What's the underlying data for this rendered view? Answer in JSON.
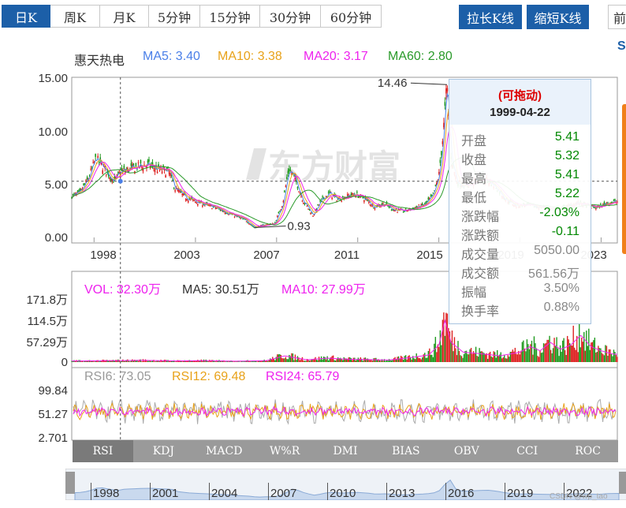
{
  "period_tabs": [
    {
      "label": "日K",
      "active": true
    },
    {
      "label": "周K",
      "active": false
    },
    {
      "label": "月K",
      "active": false
    },
    {
      "label": "5分钟",
      "active": false
    },
    {
      "label": "15分钟",
      "active": false
    },
    {
      "label": "30分钟",
      "active": false
    },
    {
      "label": "60分钟",
      "active": false
    }
  ],
  "buttons": {
    "stretch": "拉长K线",
    "shrink": "缩短K线",
    "edge": "前"
  },
  "stock_name": "惠天热电",
  "ma_legend": [
    {
      "text": "MA5: 3.40",
      "color": "#4a7fe8"
    },
    {
      "text": "MA10: 3.38",
      "color": "#e8a21a"
    },
    {
      "text": "MA20: 3.17",
      "color": "#ee22ee"
    },
    {
      "text": "MA60: 2.80",
      "color": "#2a9a2a"
    }
  ],
  "vol_legend": [
    {
      "text": "VOL: 32.30万",
      "color": "#ee22ee"
    },
    {
      "text": "MA5: 30.51万",
      "color": "#333333"
    },
    {
      "text": "MA10: 27.99万",
      "color": "#ee22ee"
    }
  ],
  "rsi_legend": [
    {
      "text": "RSI6: 73.05",
      "color": "#999999"
    },
    {
      "text": "RSI12: 69.48",
      "color": "#e8a21a"
    },
    {
      "text": "RSI24: 65.79",
      "color": "#ee22ee"
    }
  ],
  "tooltip": {
    "drag_label": "(可拖动)",
    "date": "1999-04-22",
    "rows": [
      {
        "key": "开盘",
        "value": "5.41",
        "color": "#008800"
      },
      {
        "key": "收盘",
        "value": "5.32",
        "color": "#008800"
      },
      {
        "key": "最高",
        "value": "5.41",
        "color": "#008800"
      },
      {
        "key": "最低",
        "value": "5.22",
        "color": "#008800"
      },
      {
        "key": "涨跌幅",
        "value": "-2.03%",
        "color": "#008800"
      },
      {
        "key": "涨跌额",
        "value": "-0.11",
        "color": "#008800"
      },
      {
        "key": "成交量",
        "value": "5050.00",
        "color": "#888888"
      },
      {
        "key": "成交额",
        "value": "561.56万",
        "color": "#888888"
      },
      {
        "key": "振幅",
        "value": "3.50%",
        "color": "#888888"
      },
      {
        "key": "换手率",
        "value": "0.88%",
        "color": "#888888"
      }
    ]
  },
  "indicator_tabs": [
    {
      "label": "RSI",
      "active": true
    },
    {
      "label": "KDJ",
      "active": false
    },
    {
      "label": "MACD",
      "active": false
    },
    {
      "label": "W%R",
      "active": false
    },
    {
      "label": "DMI",
      "active": false
    },
    {
      "label": "BIAS",
      "active": false
    },
    {
      "label": "OBV",
      "active": false
    },
    {
      "label": "CCI",
      "active": false
    },
    {
      "label": "ROC",
      "active": false
    }
  ],
  "navigator_years": [
    "1998",
    "2001",
    "2004",
    "2007",
    "2010",
    "2013",
    "2016",
    "2019",
    "2022"
  ],
  "watermark": "CSDN @wp_tao",
  "chart_data": [
    {
      "type": "candlestick",
      "y_ticks": [
        "15.00",
        "10.00",
        "5.00",
        "0.00"
      ],
      "ylim": [
        0,
        15
      ],
      "x_ticks": [
        "1998",
        "2003",
        "2007",
        "2011",
        "2015",
        "2019",
        "2023"
      ],
      "x_tick_values": [
        1998,
        2003,
        2007,
        2011,
        2015,
        2019,
        2023
      ],
      "xlim": [
        1996.9,
        2023.8
      ],
      "annotations": [
        {
          "text": "14.46",
          "x": 2015.4,
          "y": 14.46
        },
        {
          "text": "0.93",
          "x": 2005.9,
          "y": 0.93
        }
      ],
      "price_x": [
        1996.9,
        1997.3,
        1997.7,
        1998.1,
        1998.5,
        1999.0,
        1999.3,
        2000.0,
        2000.6,
        2001.2,
        2001.7,
        2002.0,
        2002.5,
        2003.0,
        2003.5,
        2004.0,
        2004.5,
        2005.0,
        2005.5,
        2005.9,
        2006.4,
        2006.9,
        2007.3,
        2007.6,
        2007.9,
        2008.3,
        2008.8,
        2009.2,
        2009.6,
        2010.0,
        2010.5,
        2010.9,
        2011.4,
        2011.8,
        2012.3,
        2012.8,
        2013.3,
        2013.8,
        2014.3,
        2014.7,
        2015.0,
        2015.2,
        2015.4,
        2015.6,
        2015.9,
        2016.3,
        2016.8,
        2017.3,
        2017.8,
        2018.3,
        2018.8,
        2019.3,
        2019.8,
        2020.3,
        2020.8,
        2021.3,
        2021.8,
        2022.3,
        2022.8,
        2023.3,
        2023.8
      ],
      "price_y": [
        3.9,
        4.2,
        5.5,
        7.5,
        6.5,
        5.3,
        6.2,
        6.6,
        6.9,
        6.4,
        6.2,
        4.6,
        3.8,
        3.4,
        3.1,
        2.8,
        2.4,
        2.0,
        1.6,
        0.93,
        1.2,
        1.3,
        3.2,
        6.5,
        5.6,
        3.5,
        2.1,
        3.5,
        4.2,
        3.6,
        3.9,
        4.1,
        3.6,
        2.9,
        3.2,
        2.6,
        2.5,
        2.8,
        3.1,
        3.9,
        5.8,
        9.5,
        14.46,
        7.5,
        5.2,
        4.9,
        5.3,
        5.6,
        4.8,
        3.6,
        3.0,
        3.1,
        2.9,
        2.8,
        2.6,
        2.9,
        3.3,
        3.0,
        2.8,
        3.3,
        3.4
      ],
      "crosshair": {
        "x": 1999.3,
        "y": 5.32
      },
      "last_close": 5.32
    },
    {
      "type": "bar",
      "name": "VOL",
      "y_ticks": [
        "171.8万",
        "114.5万",
        "57.29万",
        "0"
      ],
      "ylim": [
        0,
        171.8
      ],
      "vol_x": [
        1997.5,
        1999.0,
        2000.5,
        2002.0,
        2003.5,
        2005.0,
        2006.5,
        2007.4,
        2007.7,
        2008.5,
        2009.5,
        2010.5,
        2011.5,
        2012.5,
        2013.5,
        2014.5,
        2015.0,
        2015.3,
        2015.6,
        2016.2,
        2017.0,
        2018.0,
        2019.0,
        2019.5,
        2020.0,
        2020.5,
        2021.0,
        2021.5,
        2022.0,
        2022.5,
        2023.0,
        2023.6
      ],
      "vol_y": [
        4,
        5,
        6,
        4,
        5,
        3,
        5,
        22,
        18,
        8,
        14,
        10,
        9,
        7,
        15,
        25,
        60,
        148,
        70,
        35,
        30,
        22,
        35,
        55,
        40,
        70,
        45,
        60,
        95,
        55,
        40,
        28
      ]
    },
    {
      "type": "line",
      "name": "RSI",
      "y_ticks": [
        "99.84",
        "51.27",
        "2.701"
      ],
      "ylim": [
        2.701,
        99.84
      ],
      "series": [
        {
          "name": "RSI6",
          "color": "#aaaaaa",
          "mid": 52,
          "amp": 22
        },
        {
          "name": "RSI12",
          "color": "#e8a21a",
          "mid": 52,
          "amp": 15
        },
        {
          "name": "RSI24",
          "color": "#ee22ee",
          "mid": 52,
          "amp": 8
        }
      ]
    }
  ],
  "colors": {
    "accent": "#1c5fa8",
    "up": "#dd2222",
    "down": "#1e9a1e",
    "tooltip_border": "#a8c4e0"
  }
}
